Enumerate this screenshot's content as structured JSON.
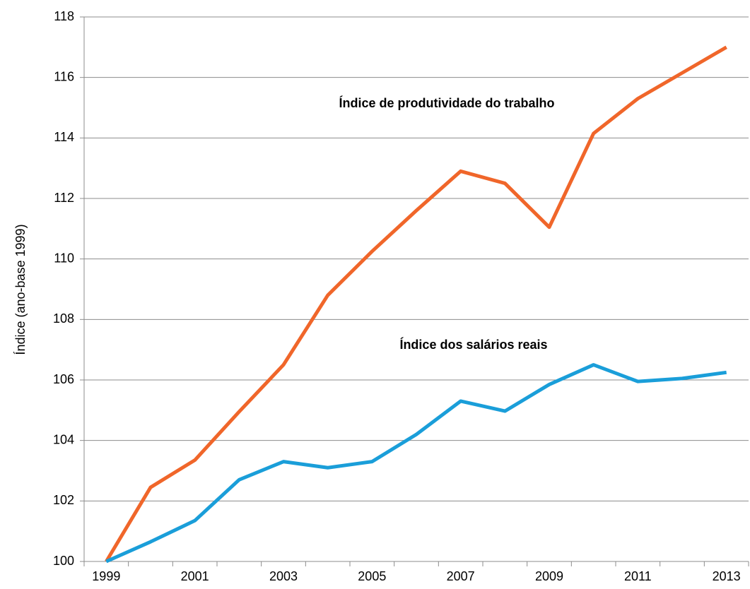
{
  "chart_data": {
    "type": "line",
    "y_label": "Índice (ano-base 1999)",
    "categories": [
      "1999",
      null,
      "2001",
      null,
      "2003",
      null,
      "2005",
      null,
      "2007",
      null,
      "2009",
      null,
      "2011",
      null,
      "2013"
    ],
    "series": [
      {
        "name": "Índice de produtividade do trabalho",
        "color": "#f0662a",
        "values": [
          100,
          102.45,
          103.35,
          104.95,
          106.5,
          108.8,
          110.25,
          111.6,
          112.9,
          112.5,
          111.05,
          114.15,
          115.3,
          116.15,
          117.0
        ]
      },
      {
        "name": "Índice dos salários reais",
        "color": "#1a9ed9",
        "values": [
          100,
          100.65,
          101.35,
          102.7,
          103.3,
          103.1,
          103.3,
          104.2,
          105.3,
          104.97,
          105.85,
          106.5,
          105.95,
          106.05,
          106.25
        ]
      }
    ],
    "ylim": [
      100,
      118
    ],
    "yticks": [
      100,
      102,
      104,
      106,
      108,
      110,
      112,
      114,
      116,
      118
    ],
    "grid": true
  }
}
